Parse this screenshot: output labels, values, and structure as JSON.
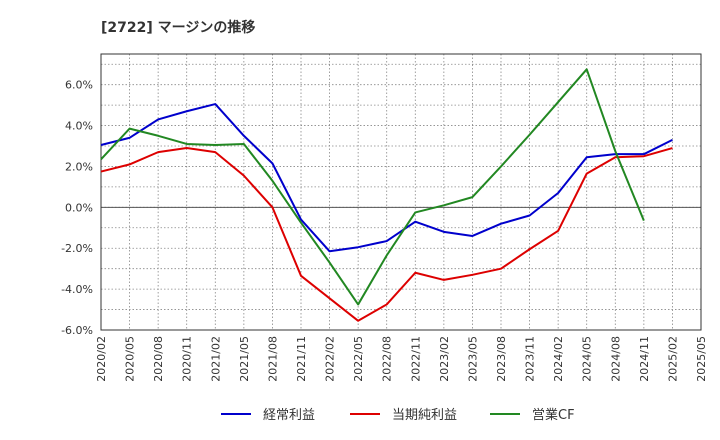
{
  "chart_data": {
    "type": "line",
    "title": "[2722]  マージンの推移",
    "xlabel": "",
    "ylabel": "",
    "categories": [
      "2020/02",
      "2020/05",
      "2020/08",
      "2020/11",
      "2021/02",
      "2021/05",
      "2021/08",
      "2021/11",
      "2022/02",
      "2022/05",
      "2022/08",
      "2022/11",
      "2023/02",
      "2023/05",
      "2023/08",
      "2023/11",
      "2024/02",
      "2024/05",
      "2024/08",
      "2024/11",
      "2025/02",
      "2025/05"
    ],
    "y_ticks": [
      "6.0%",
      "4.0%",
      "2.0%",
      "0.0%",
      "-2.0%",
      "-4.0%",
      "-6.0%"
    ],
    "ylim": [
      -6.0,
      7.5
    ],
    "grid": true,
    "legend_position": "bottom",
    "series": [
      {
        "name": "経常利益",
        "color": "#0000cc",
        "values": [
          3.05,
          3.4,
          4.3,
          4.7,
          5.05,
          3.5,
          2.15,
          -0.6,
          -2.15,
          -1.95,
          -1.65,
          -0.7,
          -1.2,
          -1.4,
          -0.8,
          -0.4,
          0.7,
          2.45,
          2.6,
          2.6,
          3.3,
          null
        ]
      },
      {
        "name": "当期純利益",
        "color": "#dd0000",
        "values": [
          1.75,
          2.1,
          2.7,
          2.9,
          2.7,
          1.55,
          0.0,
          -3.35,
          -4.45,
          -5.55,
          -4.75,
          -3.2,
          -3.55,
          -3.3,
          -3.0,
          -2.05,
          -1.15,
          1.65,
          2.45,
          2.5,
          2.9,
          null
        ]
      },
      {
        "name": "営業CF",
        "color": "#228822",
        "values": [
          2.35,
          3.85,
          3.5,
          3.1,
          3.05,
          3.1,
          1.3,
          -0.75,
          -2.7,
          -4.75,
          -2.35,
          -0.25,
          0.1,
          0.5,
          2.0,
          3.55,
          5.15,
          6.75,
          2.75,
          -0.65,
          null,
          null
        ]
      }
    ]
  }
}
